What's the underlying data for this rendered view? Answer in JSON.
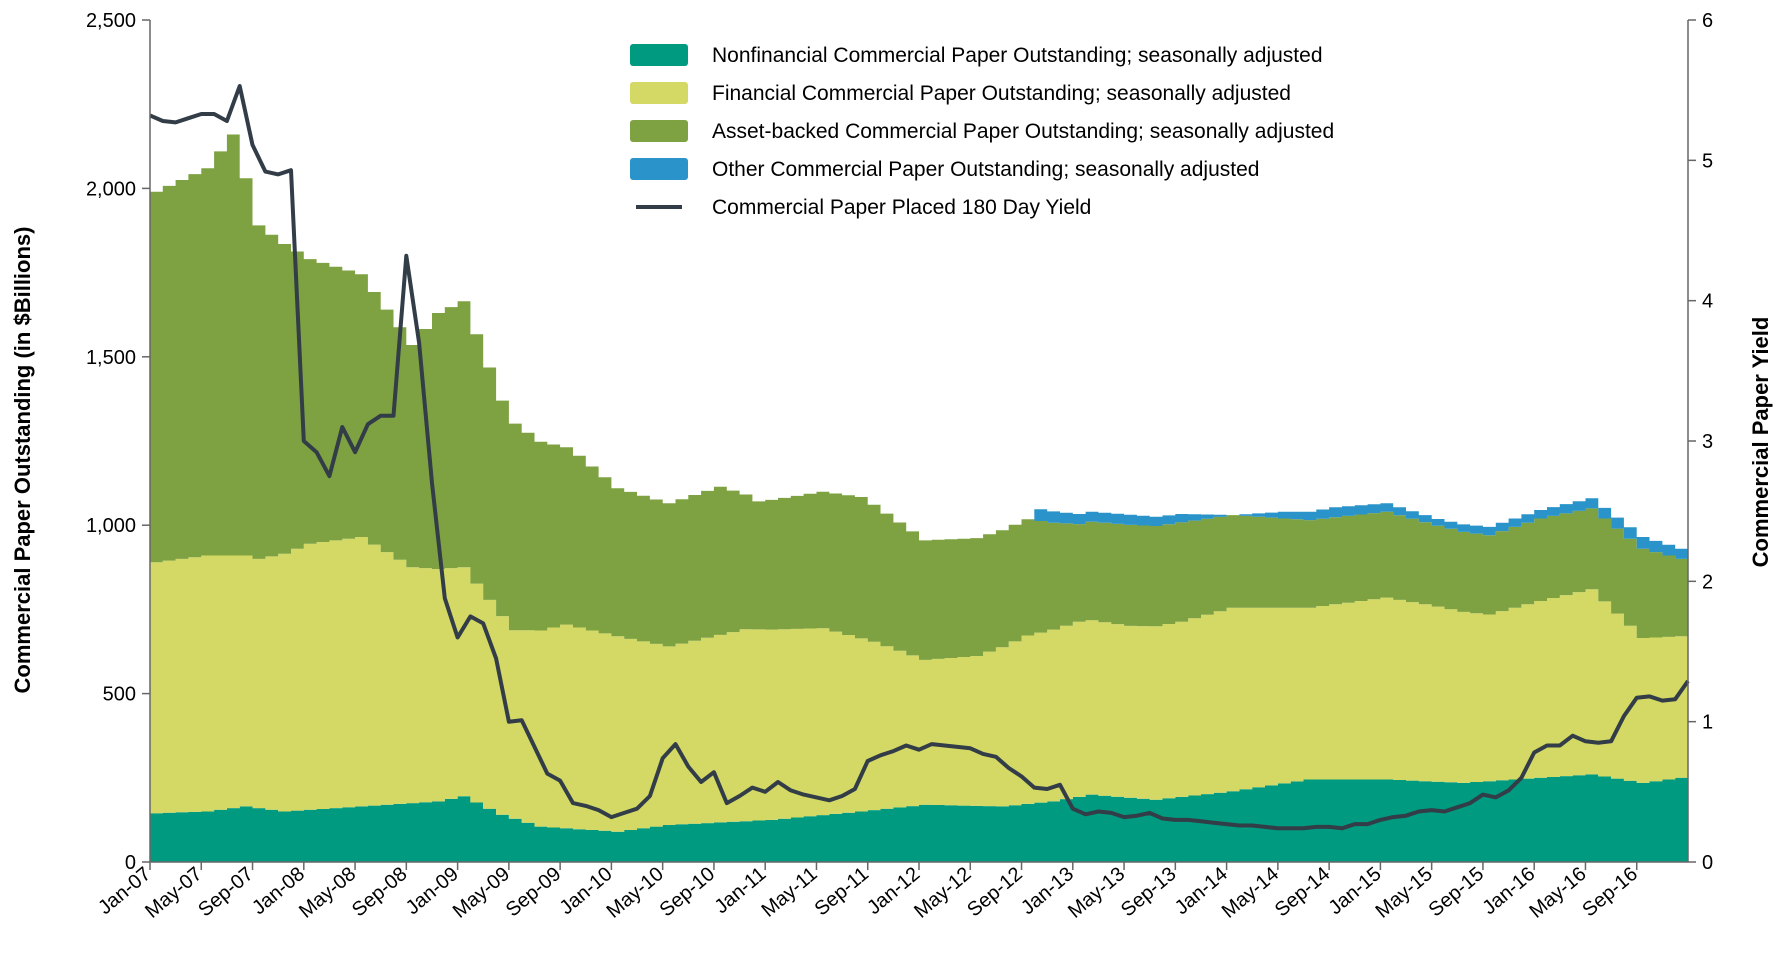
{
  "chart_data": {
    "type": "area",
    "y_left_label": "Commercial Paper Outstanding (in $Billions)",
    "y_right_label": "Commercial Paper Yield",
    "y_left_range": [
      0,
      2500
    ],
    "y_right_range": [
      0,
      6
    ],
    "y_left_ticks": [
      "0",
      "500",
      "1,000",
      "1,500",
      "2,000",
      "2,500"
    ],
    "y_right_ticks": [
      "0",
      "1",
      "2",
      "3",
      "4",
      "5",
      "6"
    ],
    "x_tick_labels": [
      "Jan-07",
      "May-07",
      "Sep-07",
      "Jan-08",
      "May-08",
      "Sep-08",
      "Jan-09",
      "May-09",
      "Sep-09",
      "Jan-10",
      "May-10",
      "Sep-10",
      "Jan-11",
      "May-11",
      "Sep-11",
      "Jan-12",
      "May-12",
      "Sep-12",
      "Jan-13",
      "May-13",
      "Sep-13",
      "Jan-14",
      "May-14",
      "Sep-14",
      "Jan-15",
      "May-15",
      "Sep-15",
      "Jan-16",
      "May-16",
      "Sep-16"
    ],
    "x_start": "Jan-07",
    "months": 120,
    "legend": [
      {
        "name": "Nonfinancial Commercial Paper Outstanding; seasonally adjusted",
        "color": "#009a80",
        "kind": "area"
      },
      {
        "name": "Financial Commercial Paper Outstanding; seasonally adjusted",
        "color": "#d4d965",
        "kind": "area"
      },
      {
        "name": "Asset-backed Commercial Paper Outstanding; seasonally adjusted",
        "color": "#7ea241",
        "kind": "area"
      },
      {
        "name": "Other Commercial Paper Outstanding; seasonally adjusted",
        "color": "#2a93c9",
        "kind": "area"
      },
      {
        "name": "Commercial Paper Placed 180 Day Yield",
        "color": "#323d48",
        "kind": "line"
      }
    ],
    "series_anchors": {
      "nonfinancial": [
        [
          0,
          145
        ],
        [
          4,
          150
        ],
        [
          7,
          165
        ],
        [
          10,
          150
        ],
        [
          16,
          165
        ],
        [
          22,
          180
        ],
        [
          24,
          195
        ],
        [
          27,
          140
        ],
        [
          30,
          105
        ],
        [
          36,
          90
        ],
        [
          40,
          110
        ],
        [
          48,
          125
        ],
        [
          55,
          150
        ],
        [
          60,
          170
        ],
        [
          66,
          165
        ],
        [
          70,
          180
        ],
        [
          73,
          200
        ],
        [
          78,
          185
        ],
        [
          84,
          210
        ],
        [
          90,
          245
        ],
        [
          96,
          245
        ],
        [
          102,
          235
        ],
        [
          108,
          250
        ],
        [
          112,
          260
        ],
        [
          116,
          235
        ],
        [
          119,
          250
        ]
      ],
      "financial": [
        [
          0,
          745
        ],
        [
          4,
          760
        ],
        [
          8,
          740
        ],
        [
          12,
          790
        ],
        [
          16,
          800
        ],
        [
          20,
          700
        ],
        [
          24,
          680
        ],
        [
          28,
          560
        ],
        [
          32,
          605
        ],
        [
          36,
          580
        ],
        [
          40,
          530
        ],
        [
          46,
          570
        ],
        [
          52,
          555
        ],
        [
          56,
          500
        ],
        [
          60,
          430
        ],
        [
          64,
          445
        ],
        [
          68,
          500
        ],
        [
          72,
          520
        ],
        [
          76,
          510
        ],
        [
          80,
          520
        ],
        [
          84,
          545
        ],
        [
          90,
          510
        ],
        [
          96,
          540
        ],
        [
          100,
          520
        ],
        [
          104,
          495
        ],
        [
          108,
          525
        ],
        [
          112,
          550
        ],
        [
          116,
          430
        ],
        [
          119,
          420
        ]
      ],
      "abcp": [
        [
          0,
          1100
        ],
        [
          4,
          1150
        ],
        [
          6,
          1250
        ],
        [
          8,
          990
        ],
        [
          10,
          920
        ],
        [
          12,
          845
        ],
        [
          16,
          780
        ],
        [
          20,
          660
        ],
        [
          22,
          760
        ],
        [
          24,
          790
        ],
        [
          27,
          640
        ],
        [
          30,
          560
        ],
        [
          33,
          510
        ],
        [
          36,
          440
        ],
        [
          40,
          425
        ],
        [
          44,
          440
        ],
        [
          47,
          380
        ],
        [
          51,
          400
        ],
        [
          55,
          420
        ],
        [
          60,
          355
        ],
        [
          64,
          350
        ],
        [
          68,
          345
        ],
        [
          72,
          290
        ],
        [
          76,
          300
        ],
        [
          80,
          295
        ],
        [
          84,
          275
        ],
        [
          90,
          260
        ],
        [
          96,
          255
        ],
        [
          100,
          240
        ],
        [
          104,
          235
        ],
        [
          108,
          245
        ],
        [
          112,
          240
        ],
        [
          116,
          265
        ],
        [
          119,
          230
        ]
      ],
      "other": [
        [
          0,
          0
        ],
        [
          68,
          0
        ],
        [
          69,
          35
        ],
        [
          72,
          30
        ],
        [
          76,
          30
        ],
        [
          80,
          25
        ],
        [
          84,
          0
        ],
        [
          88,
          20
        ],
        [
          92,
          30
        ],
        [
          96,
          25
        ],
        [
          100,
          20
        ],
        [
          104,
          25
        ],
        [
          108,
          25
        ],
        [
          112,
          30
        ],
        [
          116,
          35
        ],
        [
          119,
          30
        ]
      ],
      "yield": [
        [
          0,
          5.32
        ],
        [
          1,
          5.28
        ],
        [
          2,
          5.27
        ],
        [
          3,
          5.3
        ],
        [
          4,
          5.33
        ],
        [
          5,
          5.33
        ],
        [
          6,
          5.28
        ],
        [
          7,
          5.53
        ],
        [
          8,
          5.11
        ],
        [
          9,
          4.92
        ],
        [
          10,
          4.9
        ],
        [
          11,
          4.93
        ],
        [
          12,
          3.0
        ],
        [
          13,
          2.92
        ],
        [
          14,
          2.75
        ],
        [
          15,
          3.1
        ],
        [
          16,
          2.92
        ],
        [
          17,
          3.12
        ],
        [
          18,
          3.18
        ],
        [
          19,
          3.18
        ],
        [
          20,
          4.32
        ],
        [
          21,
          3.7
        ],
        [
          22,
          2.7
        ],
        [
          23,
          1.88
        ],
        [
          24,
          1.6
        ],
        [
          25,
          1.75
        ],
        [
          26,
          1.7
        ],
        [
          27,
          1.45
        ],
        [
          28,
          1.0
        ],
        [
          29,
          1.01
        ],
        [
          30,
          0.82
        ],
        [
          31,
          0.63
        ],
        [
          32,
          0.58
        ],
        [
          33,
          0.42
        ],
        [
          34,
          0.4
        ],
        [
          35,
          0.37
        ],
        [
          36,
          0.32
        ],
        [
          37,
          0.35
        ],
        [
          38,
          0.38
        ],
        [
          39,
          0.47
        ],
        [
          40,
          0.74
        ],
        [
          41,
          0.84
        ],
        [
          42,
          0.68
        ],
        [
          43,
          0.57
        ],
        [
          44,
          0.64
        ],
        [
          45,
          0.42
        ],
        [
          46,
          0.47
        ],
        [
          47,
          0.53
        ],
        [
          48,
          0.5
        ],
        [
          49,
          0.57
        ],
        [
          50,
          0.51
        ],
        [
          51,
          0.48
        ],
        [
          52,
          0.46
        ],
        [
          53,
          0.44
        ],
        [
          54,
          0.47
        ],
        [
          55,
          0.52
        ],
        [
          56,
          0.72
        ],
        [
          57,
          0.76
        ],
        [
          58,
          0.79
        ],
        [
          59,
          0.83
        ],
        [
          60,
          0.8
        ],
        [
          61,
          0.84
        ],
        [
          62,
          0.83
        ],
        [
          63,
          0.82
        ],
        [
          64,
          0.81
        ],
        [
          65,
          0.77
        ],
        [
          66,
          0.75
        ],
        [
          67,
          0.67
        ],
        [
          68,
          0.61
        ],
        [
          69,
          0.53
        ],
        [
          70,
          0.52
        ],
        [
          71,
          0.55
        ],
        [
          72,
          0.38
        ],
        [
          73,
          0.34
        ],
        [
          74,
          0.36
        ],
        [
          75,
          0.35
        ],
        [
          76,
          0.32
        ],
        [
          77,
          0.33
        ],
        [
          78,
          0.35
        ],
        [
          79,
          0.31
        ],
        [
          80,
          0.3
        ],
        [
          81,
          0.3
        ],
        [
          82,
          0.29
        ],
        [
          83,
          0.28
        ],
        [
          84,
          0.27
        ],
        [
          85,
          0.26
        ],
        [
          86,
          0.26
        ],
        [
          87,
          0.25
        ],
        [
          88,
          0.24
        ],
        [
          89,
          0.24
        ],
        [
          90,
          0.24
        ],
        [
          91,
          0.25
        ],
        [
          92,
          0.25
        ],
        [
          93,
          0.24
        ],
        [
          94,
          0.27
        ],
        [
          95,
          0.27
        ],
        [
          96,
          0.3
        ],
        [
          97,
          0.32
        ],
        [
          98,
          0.33
        ],
        [
          99,
          0.36
        ],
        [
          100,
          0.37
        ],
        [
          101,
          0.36
        ],
        [
          102,
          0.39
        ],
        [
          103,
          0.42
        ],
        [
          104,
          0.48
        ],
        [
          105,
          0.46
        ],
        [
          106,
          0.51
        ],
        [
          107,
          0.6
        ],
        [
          108,
          0.78
        ],
        [
          109,
          0.83
        ],
        [
          110,
          0.83
        ],
        [
          111,
          0.9
        ],
        [
          112,
          0.86
        ],
        [
          113,
          0.85
        ],
        [
          114,
          0.86
        ],
        [
          115,
          1.04
        ],
        [
          116,
          1.17
        ],
        [
          117,
          1.18
        ],
        [
          118,
          1.15
        ],
        [
          119,
          1.16
        ],
        [
          120,
          1.29
        ]
      ]
    }
  }
}
